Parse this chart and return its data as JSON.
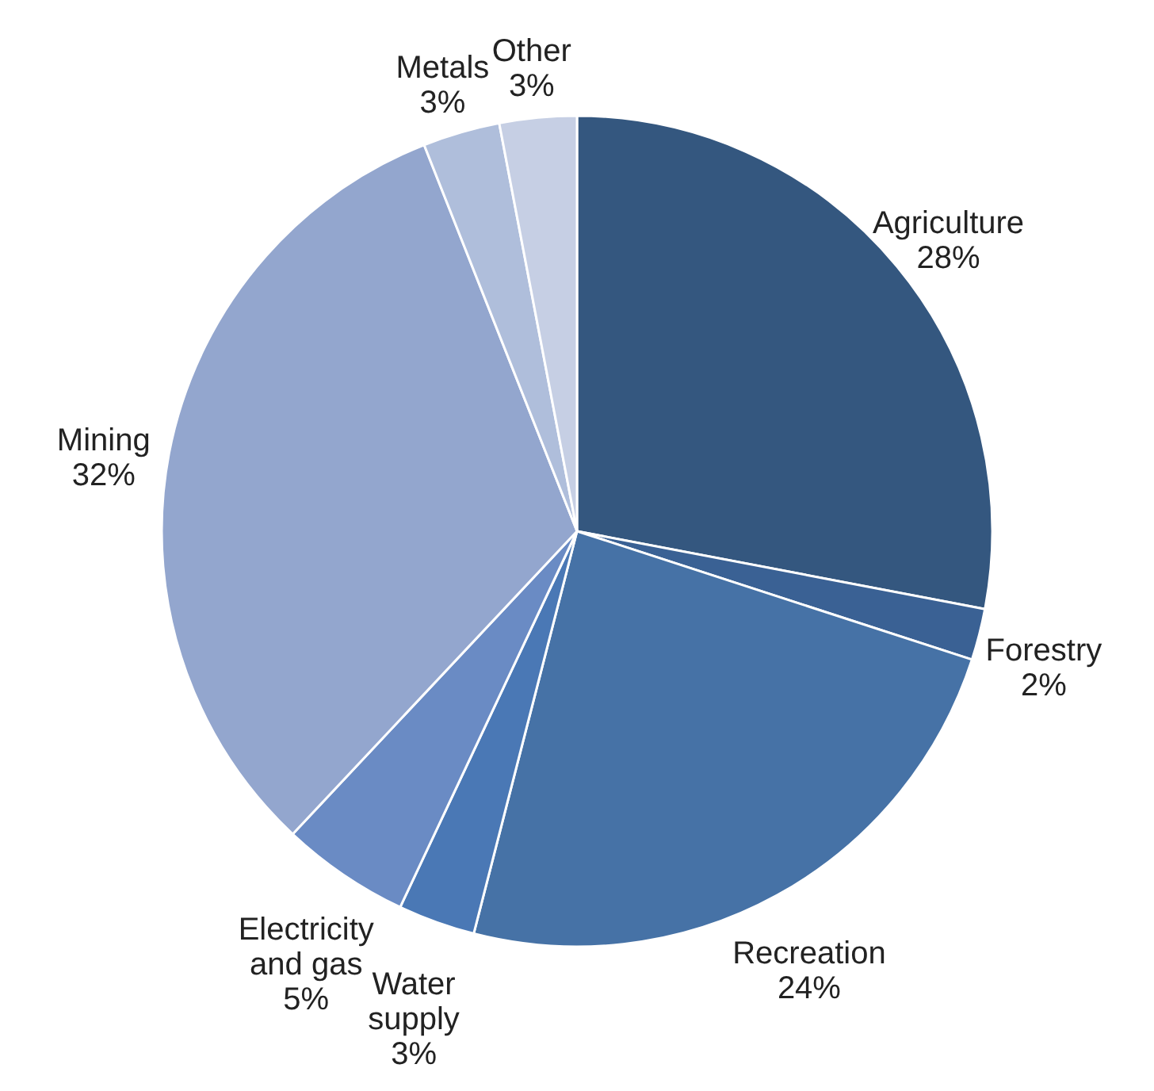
{
  "chart_data": {
    "type": "pie",
    "categories": [
      "Agriculture",
      "Forestry",
      "Recreation",
      "Water supply",
      "Electricity and gas",
      "Mining",
      "Metals",
      "Other"
    ],
    "values": [
      28,
      2,
      24,
      3,
      5,
      32,
      3,
      3
    ],
    "value_labels": [
      "28%",
      "2%",
      "24%",
      "3%",
      "5%",
      "32%",
      "3%",
      "3%"
    ],
    "colors": [
      "#34577f",
      "#3a6194",
      "#4672a6",
      "#4a78b5",
      "#6a8bc4",
      "#93a6ce",
      "#afbedb",
      "#c6cfe4"
    ],
    "legend": false
  }
}
